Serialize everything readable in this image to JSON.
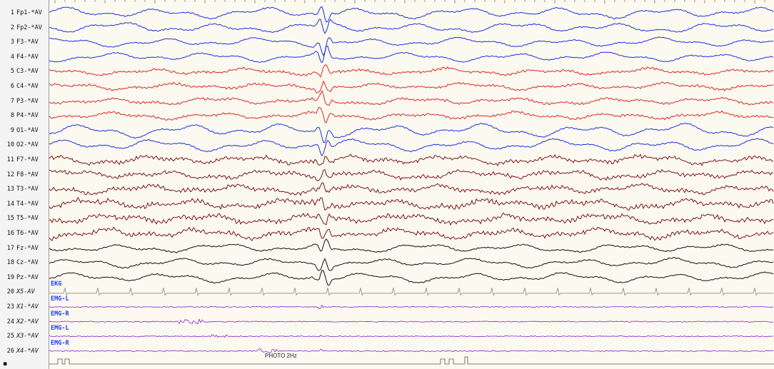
{
  "channels": [
    {
      "num": "1",
      "name": "Fp1-*AV",
      "color": "#1f2fe0",
      "amp": 4.2,
      "hf": 0.5,
      "spike": 1.4
    },
    {
      "num": "2",
      "name": "Fp2-*AV",
      "color": "#1f2fe0",
      "amp": 4.0,
      "hf": 0.5,
      "spike": 1.5
    },
    {
      "num": "3",
      "name": "F3-*AV",
      "color": "#1f2fe0",
      "amp": 3.6,
      "hf": 0.4,
      "spike": 1.6
    },
    {
      "num": "4",
      "name": "F4-*AV",
      "color": "#1f2fe0",
      "amp": 3.6,
      "hf": 0.4,
      "spike": 1.7
    },
    {
      "num": "5",
      "name": "C3-*AV",
      "color": "#e0261f",
      "amp": 2.6,
      "hf": 0.9,
      "spike": 1.1
    },
    {
      "num": "6",
      "name": "C4-*AV",
      "color": "#e0261f",
      "amp": 2.6,
      "hf": 0.9,
      "spike": 1.1
    },
    {
      "num": "7",
      "name": "P3-*AV",
      "color": "#e0261f",
      "amp": 2.8,
      "hf": 0.9,
      "spike": 1.2
    },
    {
      "num": "8",
      "name": "P4-*AV",
      "color": "#e0261f",
      "amp": 2.8,
      "hf": 0.9,
      "spike": 1.3
    },
    {
      "num": "9",
      "name": "O1-*AV",
      "color": "#1f2fe0",
      "amp": 5.2,
      "hf": 0.5,
      "spike": 1.6
    },
    {
      "num": "10",
      "name": "O2-*AV",
      "color": "#1f2fe0",
      "amp": 4.6,
      "hf": 0.5,
      "spike": 1.4
    },
    {
      "num": "11",
      "name": "F7-*AV",
      "color": "#7a1414",
      "amp": 3.4,
      "hf": 1.4,
      "spike": 0.9
    },
    {
      "num": "12",
      "name": "F8-*AV",
      "color": "#7a1414",
      "amp": 3.4,
      "hf": 1.4,
      "spike": 0.9
    },
    {
      "num": "13",
      "name": "T3-*AV",
      "color": "#7a1414",
      "amp": 3.4,
      "hf": 1.5,
      "spike": 0.8
    },
    {
      "num": "14",
      "name": "T4-*AV",
      "color": "#7a1414",
      "amp": 3.6,
      "hf": 1.8,
      "spike": 0.9
    },
    {
      "num": "15",
      "name": "T5-*AV",
      "color": "#7a1414",
      "amp": 3.6,
      "hf": 1.8,
      "spike": 1.0
    },
    {
      "num": "16",
      "name": "T6-*AV",
      "color": "#7a1414",
      "amp": 4.0,
      "hf": 1.6,
      "spike": 1.1
    },
    {
      "num": "17",
      "name": "Fz-*AV",
      "color": "#111111",
      "amp": 3.4,
      "hf": 0.5,
      "spike": 1.2
    },
    {
      "num": "18",
      "name": "Cz-*AV",
      "color": "#111111",
      "amp": 3.6,
      "hf": 0.5,
      "spike": 1.3
    },
    {
      "num": "19",
      "name": "Pz-*AV",
      "color": "#111111",
      "amp": 3.8,
      "hf": 0.5,
      "spike": 1.4
    },
    {
      "num": "20",
      "name": "X5-AV",
      "color": "#9a9a9a",
      "aux": true,
      "tag": "EKG",
      "kind": "ekg"
    },
    {
      "num": "23",
      "name": "X1-*AV",
      "color": "#8a1fd0",
      "aux": true,
      "tag": "EMG-L",
      "kind": "emg"
    },
    {
      "num": "24",
      "name": "X2-*AV",
      "color": "#8a1fd0",
      "aux": true,
      "tag": "EMG-R",
      "kind": "emg"
    },
    {
      "num": "25",
      "name": "X3-*AV",
      "color": "#8a1fd0",
      "aux": true,
      "tag": "EMG-L",
      "kind": "emg"
    },
    {
      "num": "26",
      "name": "X4-*AV",
      "color": "#8a1fd0",
      "aux": true,
      "tag": "EMG-R",
      "kind": "emg"
    }
  ],
  "event_label": "PHOTO 2Hz",
  "marker_glyph": "▪",
  "colors": {
    "background": "#fbf9f0",
    "panel": "#f4f4f4",
    "aux_tag": "#1a3cff",
    "grid": "#c8c8c8"
  }
}
